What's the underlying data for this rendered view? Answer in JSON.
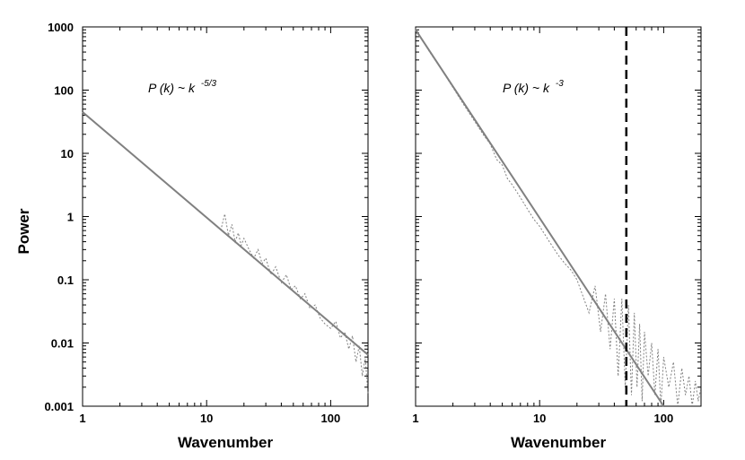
{
  "figure": {
    "ylabel": "Power"
  },
  "chart_data": [
    {
      "type": "line",
      "xlabel": "Wavenumber",
      "ylabel": "Power",
      "xscale": "log",
      "yscale": "log",
      "xlim": [
        1,
        200
      ],
      "ylim": [
        0.001,
        1000
      ],
      "xticks": [
        "1",
        "10",
        "100"
      ],
      "yticks": [
        "0.001",
        "0.01",
        "0.1",
        "1",
        "10",
        "100",
        "1000"
      ],
      "annotation": {
        "base": "P (k) ~ k",
        "exponent": "-5/3"
      },
      "fit": {
        "x": [
          1,
          200
        ],
        "y": [
          45,
          0.0065
        ],
        "color": "#808080"
      },
      "spectrum": {
        "color": "#808080",
        "x": [
          13,
          14,
          15,
          16,
          17,
          18,
          19,
          20,
          22,
          24,
          26,
          28,
          30,
          33,
          36,
          40,
          44,
          48,
          52,
          57,
          62,
          68,
          75,
          82,
          90,
          100,
          110,
          120,
          130,
          140,
          150,
          160,
          170,
          180,
          190,
          200
        ],
        "y": [
          0.6,
          1.1,
          0.5,
          0.75,
          0.4,
          0.55,
          0.35,
          0.45,
          0.3,
          0.22,
          0.3,
          0.18,
          0.22,
          0.12,
          0.16,
          0.09,
          0.12,
          0.07,
          0.08,
          0.05,
          0.06,
          0.035,
          0.04,
          0.025,
          0.02,
          0.017,
          0.022,
          0.012,
          0.015,
          0.008,
          0.013,
          0.005,
          0.009,
          0.003,
          0.006,
          0.0015
        ]
      }
    },
    {
      "type": "line",
      "xlabel": "Wavenumber",
      "xscale": "log",
      "yscale": "log",
      "xlim": [
        1,
        200
      ],
      "ylim": [
        0.001,
        1000
      ],
      "xticks": [
        "1",
        "10",
        "100"
      ],
      "annotation": {
        "base": "P (k) ~ k",
        "exponent": "-3"
      },
      "fit": {
        "x": [
          1,
          100
        ],
        "y": [
          900,
          0.001
        ],
        "color": "#808080"
      },
      "cutoff": {
        "x": 50,
        "style": "dashed",
        "color": "#000000"
      },
      "spectrum": {
        "color": "#808080",
        "x": [
          1,
          1.3,
          1.6,
          2,
          2.5,
          3,
          3.5,
          4,
          4.5,
          5,
          5.5,
          6,
          7,
          8,
          9,
          10,
          12,
          14,
          16,
          18,
          20,
          22,
          25,
          28,
          31,
          34,
          37,
          40,
          43,
          46,
          49,
          52,
          55,
          58,
          61,
          64,
          67,
          70,
          75,
          80,
          85,
          90,
          95,
          100,
          110,
          120,
          130,
          140,
          150,
          160,
          170,
          180,
          190,
          200
        ],
        "y": [
          950,
          400,
          220,
          110,
          55,
          32,
          20,
          14,
          8,
          6.5,
          4,
          3.2,
          2,
          1.3,
          0.9,
          0.7,
          0.4,
          0.25,
          0.18,
          0.14,
          0.1,
          0.06,
          0.03,
          0.08,
          0.015,
          0.06,
          0.008,
          0.05,
          0.003,
          0.05,
          0.002,
          0.04,
          0.0015,
          0.03,
          0.002,
          0.02,
          0.0012,
          0.015,
          0.003,
          0.01,
          0.0015,
          0.008,
          0.001,
          0.006,
          0.002,
          0.005,
          0.001,
          0.004,
          0.0015,
          0.003,
          0.001,
          0.0025,
          0.0012,
          0.002
        ]
      }
    }
  ]
}
